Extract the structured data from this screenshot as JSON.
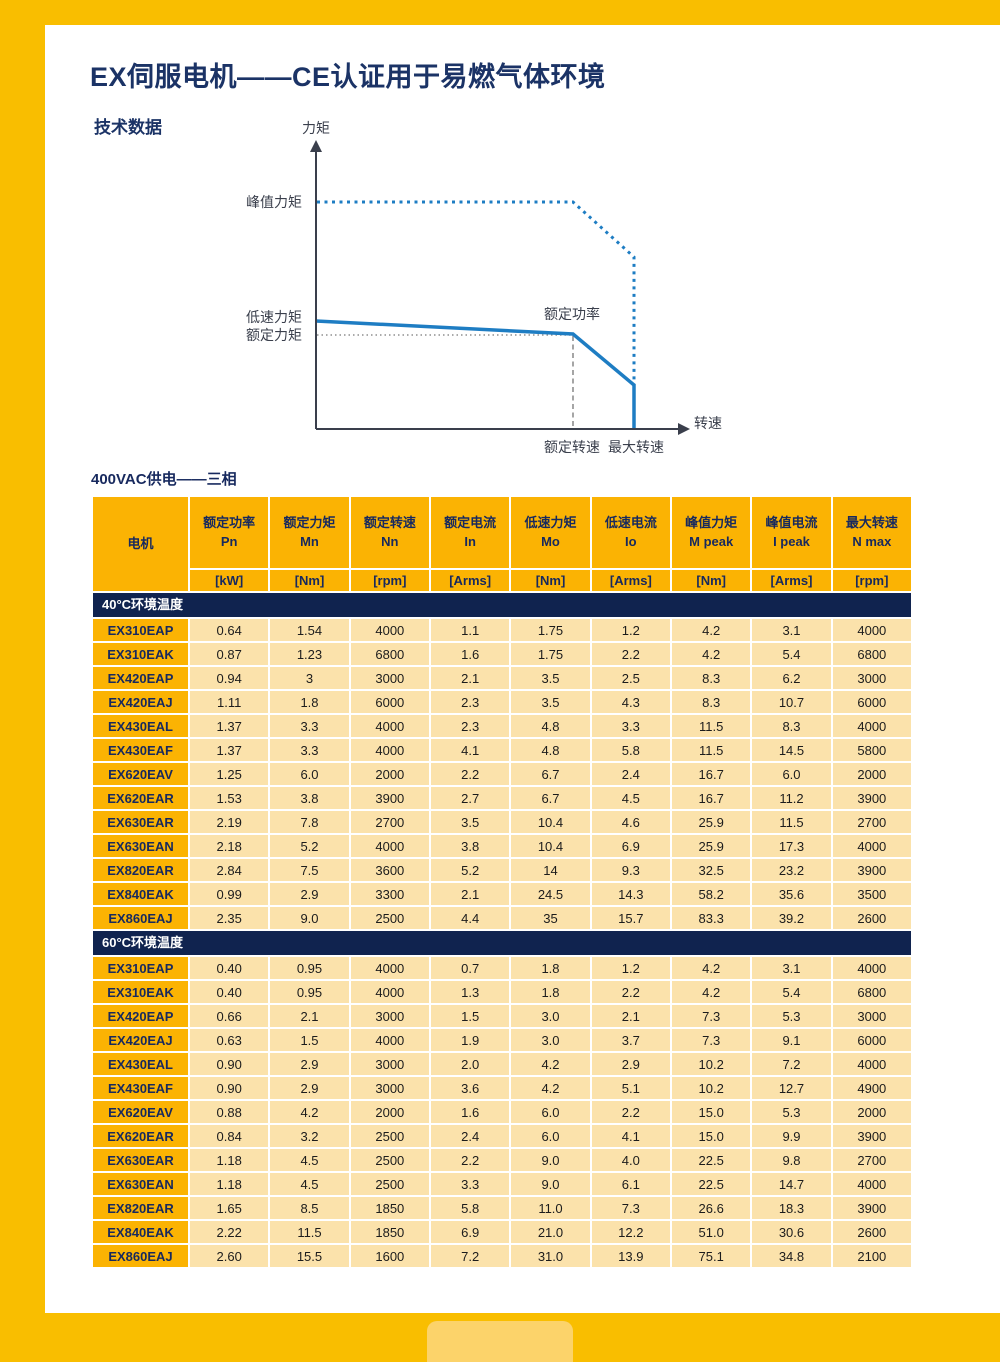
{
  "page": {
    "title": "EX伺服电机——CE认证用于易燃气体环境",
    "subtitle": "技术数据",
    "power_label": "400VAC供电——三相"
  },
  "colors": {
    "frame": "#F9BE00",
    "tab": "#FCD36A",
    "hdr": "#FBB303",
    "cream": "#FBE2AB",
    "navy": "#10234F",
    "navytext": "#17295E",
    "blue": "#1E7DC3",
    "gray": "#8F8F8F",
    "axis": "#3A3F4C",
    "title": "#1B3366"
  },
  "chart": {
    "y_axis_label": "力矩",
    "x_axis_label": "转速",
    "peak_torque_label": "峰值力矩",
    "low_speed_torque_label": "低速力矩",
    "rated_torque_label": "额定力矩",
    "rated_power_label": "额定功率",
    "rated_speed_label": "额定转速",
    "max_speed_label": "最大转速"
  },
  "table": {
    "columns": [
      {
        "name": "电机",
        "symbol": "",
        "unit": ""
      },
      {
        "name": "额定功率",
        "symbol": "Pn",
        "unit": "[kW]"
      },
      {
        "name": "额定力矩",
        "symbol": "Mn",
        "unit": "[Nm]"
      },
      {
        "name": "额定转速",
        "symbol": "Nn",
        "unit": "[rpm]"
      },
      {
        "name": "额定电流",
        "symbol": "In",
        "unit": "[Arms]"
      },
      {
        "name": "低速力矩",
        "symbol": "Mo",
        "unit": "[Nm]"
      },
      {
        "name": "低速电流",
        "symbol": "Io",
        "unit": "[Arms]"
      },
      {
        "name": "峰值力矩",
        "symbol": "M peak",
        "unit": "[Nm]"
      },
      {
        "name": "峰值电流",
        "symbol": "I peak",
        "unit": "[Arms]"
      },
      {
        "name": "最大转速",
        "symbol": "N max",
        "unit": "[rpm]"
      }
    ],
    "sections": [
      {
        "label": "40°C环境温度",
        "rows": [
          [
            "EX310EAP",
            "0.64",
            "1.54",
            "4000",
            "1.1",
            "1.75",
            "1.2",
            "4.2",
            "3.1",
            "4000"
          ],
          [
            "EX310EAK",
            "0.87",
            "1.23",
            "6800",
            "1.6",
            "1.75",
            "2.2",
            "4.2",
            "5.4",
            "6800"
          ],
          [
            "EX420EAP",
            "0.94",
            "3",
            "3000",
            "2.1",
            "3.5",
            "2.5",
            "8.3",
            "6.2",
            "3000"
          ],
          [
            "EX420EAJ",
            "1.11",
            "1.8",
            "6000",
            "2.3",
            "3.5",
            "4.3",
            "8.3",
            "10.7",
            "6000"
          ],
          [
            "EX430EAL",
            "1.37",
            "3.3",
            "4000",
            "2.3",
            "4.8",
            "3.3",
            "11.5",
            "8.3",
            "4000"
          ],
          [
            "EX430EAF",
            "1.37",
            "3.3",
            "4000",
            "4.1",
            "4.8",
            "5.8",
            "11.5",
            "14.5",
            "5800"
          ],
          [
            "EX620EAV",
            "1.25",
            "6.0",
            "2000",
            "2.2",
            "6.7",
            "2.4",
            "16.7",
            "6.0",
            "2000"
          ],
          [
            "EX620EAR",
            "1.53",
            "3.8",
            "3900",
            "2.7",
            "6.7",
            "4.5",
            "16.7",
            "11.2",
            "3900"
          ],
          [
            "EX630EAR",
            "2.19",
            "7.8",
            "2700",
            "3.5",
            "10.4",
            "4.6",
            "25.9",
            "11.5",
            "2700"
          ],
          [
            "EX630EAN",
            "2.18",
            "5.2",
            "4000",
            "3.8",
            "10.4",
            "6.9",
            "25.9",
            "17.3",
            "4000"
          ],
          [
            "EX820EAR",
            "2.84",
            "7.5",
            "3600",
            "5.2",
            "14",
            "9.3",
            "32.5",
            "23.2",
            "3900"
          ],
          [
            "EX840EAK",
            "0.99",
            "2.9",
            "3300",
            "2.1",
            "24.5",
            "14.3",
            "58.2",
            "35.6",
            "3500"
          ],
          [
            "EX860EAJ",
            "2.35",
            "9.0",
            "2500",
            "4.4",
            "35",
            "15.7",
            "83.3",
            "39.2",
            "2600"
          ]
        ]
      },
      {
        "label": "60°C环境温度",
        "rows": [
          [
            "EX310EAP",
            "0.40",
            "0.95",
            "4000",
            "0.7",
            "1.8",
            "1.2",
            "4.2",
            "3.1",
            "4000"
          ],
          [
            "EX310EAK",
            "0.40",
            "0.95",
            "4000",
            "1.3",
            "1.8",
            "2.2",
            "4.2",
            "5.4",
            "6800"
          ],
          [
            "EX420EAP",
            "0.66",
            "2.1",
            "3000",
            "1.5",
            "3.0",
            "2.1",
            "7.3",
            "5.3",
            "3000"
          ],
          [
            "EX420EAJ",
            "0.63",
            "1.5",
            "4000",
            "1.9",
            "3.0",
            "3.7",
            "7.3",
            "9.1",
            "6000"
          ],
          [
            "EX430EAL",
            "0.90",
            "2.9",
            "3000",
            "2.0",
            "4.2",
            "2.9",
            "10.2",
            "7.2",
            "4000"
          ],
          [
            "EX430EAF",
            "0.90",
            "2.9",
            "3000",
            "3.6",
            "4.2",
            "5.1",
            "10.2",
            "12.7",
            "4900"
          ],
          [
            "EX620EAV",
            "0.88",
            "4.2",
            "2000",
            "1.6",
            "6.0",
            "2.2",
            "15.0",
            "5.3",
            "2000"
          ],
          [
            "EX620EAR",
            "0.84",
            "3.2",
            "2500",
            "2.4",
            "6.0",
            "4.1",
            "15.0",
            "9.9",
            "3900"
          ],
          [
            "EX630EAR",
            "1.18",
            "4.5",
            "2500",
            "2.2",
            "9.0",
            "4.0",
            "22.5",
            "9.8",
            "2700"
          ],
          [
            "EX630EAN",
            "1.18",
            "4.5",
            "2500",
            "3.3",
            "9.0",
            "6.1",
            "22.5",
            "14.7",
            "4000"
          ],
          [
            "EX820EAR",
            "1.65",
            "8.5",
            "1850",
            "5.8",
            "11.0",
            "7.3",
            "26.6",
            "18.3",
            "3900"
          ],
          [
            "EX840EAK",
            "2.22",
            "11.5",
            "1850",
            "6.9",
            "21.0",
            "12.2",
            "51.0",
            "30.6",
            "2600"
          ],
          [
            "EX860EAJ",
            "2.60",
            "15.5",
            "1600",
            "7.2",
            "31.0",
            "13.9",
            "75.1",
            "34.8",
            "2100"
          ]
        ]
      }
    ]
  }
}
